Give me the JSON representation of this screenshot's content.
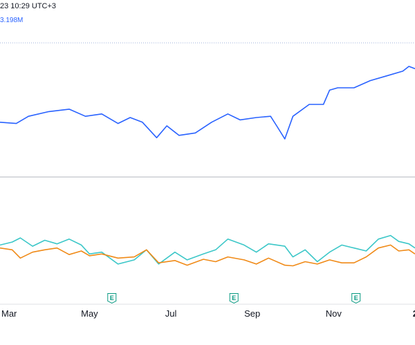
{
  "header": {
    "timestamp": "23 10:29 UTC+3",
    "volume": "3.198M"
  },
  "colors": {
    "price": "#2962ff",
    "indicator_fast": "#3cc7c8",
    "indicator_slow": "#f08a17",
    "earnings": "#089981",
    "grid": "#dfe1e5",
    "reference_line": "#b2b5be",
    "top_dotted": "#9db2d8"
  },
  "earnings_markers": [
    {
      "label": "E",
      "x": 3.55
    },
    {
      "label": "E",
      "x": 6.55
    },
    {
      "label": "E",
      "x": 9.55
    }
  ],
  "chart_data": {
    "type": "line",
    "x_ticks": [
      {
        "label": "Mar",
        "x": 1
      },
      {
        "label": "May",
        "x": 3
      },
      {
        "label": "Jul",
        "x": 5
      },
      {
        "label": "Sep",
        "x": 7
      },
      {
        "label": "Nov",
        "x": 9
      },
      {
        "label": "2",
        "x": 11
      }
    ],
    "xlim": [
      0.8,
      11
    ],
    "price_ylim": [
      0,
      100
    ],
    "indicator_ylim": [
      0,
      100
    ],
    "series": [
      {
        "key": "price",
        "x": [
          0.8,
          1.2,
          1.5,
          2.0,
          2.5,
          2.9,
          3.3,
          3.7,
          4.0,
          4.3,
          4.65,
          4.9,
          5.2,
          5.6,
          6.0,
          6.4,
          6.7,
          7.1,
          7.45,
          7.6,
          7.8,
          8.0,
          8.4,
          8.75,
          8.9,
          9.1,
          9.5,
          9.9,
          10.3,
          10.7,
          10.85,
          11.0
        ],
        "values": [
          53,
          52,
          58,
          62,
          64,
          58,
          60,
          52,
          57,
          53,
          40,
          50,
          42,
          44,
          53,
          60,
          55,
          57,
          58,
          50,
          39,
          58,
          68,
          68,
          80,
          82,
          82,
          88,
          92,
          96,
          100,
          98
        ]
      },
      {
        "key": "indicator_fast",
        "x": [
          0.8,
          1.1,
          1.3,
          1.6,
          1.9,
          2.2,
          2.5,
          2.8,
          3.0,
          3.3,
          3.7,
          4.1,
          4.4,
          4.7,
          5.1,
          5.4,
          5.8,
          6.1,
          6.4,
          6.8,
          7.1,
          7.4,
          7.8,
          8.0,
          8.3,
          8.6,
          8.9,
          9.2,
          9.5,
          9.8,
          10.1,
          10.4,
          10.6,
          10.85,
          11.0
        ],
        "values": [
          60,
          65,
          72,
          58,
          68,
          62,
          70,
          60,
          45,
          48,
          28,
          35,
          52,
          28,
          48,
          35,
          45,
          52,
          70,
          60,
          48,
          62,
          58,
          40,
          52,
          32,
          48,
          60,
          55,
          50,
          70,
          76,
          66,
          62,
          55
        ]
      },
      {
        "key": "indicator_slow",
        "x": [
          0.8,
          1.1,
          1.3,
          1.6,
          1.9,
          2.2,
          2.5,
          2.8,
          3.0,
          3.3,
          3.7,
          4.1,
          4.4,
          4.7,
          5.1,
          5.4,
          5.8,
          6.1,
          6.4,
          6.8,
          7.1,
          7.4,
          7.8,
          8.0,
          8.3,
          8.6,
          8.9,
          9.2,
          9.5,
          9.8,
          10.1,
          10.4,
          10.6,
          10.85,
          11.0
        ],
        "values": [
          55,
          52,
          38,
          48,
          52,
          55,
          44,
          50,
          42,
          45,
          38,
          40,
          52,
          30,
          34,
          26,
          36,
          32,
          40,
          35,
          28,
          38,
          26,
          25,
          32,
          28,
          35,
          30,
          30,
          40,
          55,
          60,
          50,
          52,
          45
        ]
      }
    ]
  }
}
